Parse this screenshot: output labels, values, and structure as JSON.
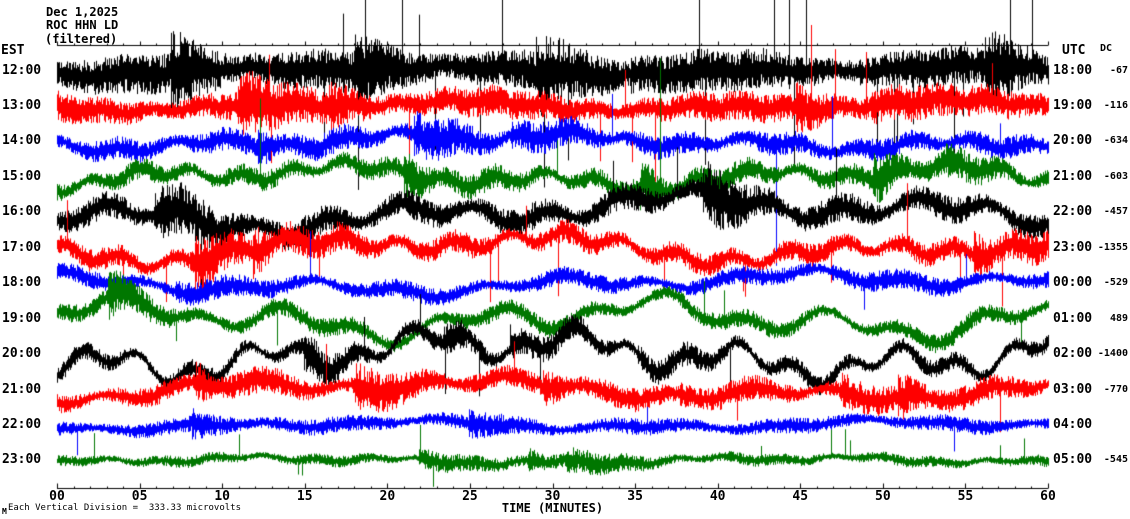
{
  "header": {
    "date": "Dec 1,2025",
    "station": "ROC HHN LD",
    "filter": "(filtered)"
  },
  "axes": {
    "left_label": "EST",
    "right_label": "UTC",
    "dc_label": "DC",
    "x_title": "TIME (MINUTES)",
    "x_ticks": [
      "00",
      "05",
      "10",
      "15",
      "20",
      "25",
      "30",
      "35",
      "40",
      "45",
      "50",
      "55",
      "60"
    ]
  },
  "footer": {
    "scale_note": "Each Vertical Division =  333.33 microvolts",
    "corner_mark": "M"
  },
  "colors": {
    "trace_black": "#000000",
    "trace_red": "#ff0000",
    "trace_blue": "#0000ff",
    "trace_green": "#007700",
    "axis": "#000000",
    "background": "#ffffff"
  },
  "chart_data": {
    "type": "line",
    "subtype": "helicorder-seismogram",
    "title": "ROC HHN LD — Dec 1,2025",
    "xlabel": "TIME (MINUTES)",
    "x_range_minutes": [
      0,
      60
    ],
    "x_tick_step_minutes": 5,
    "minutes_per_row": 60,
    "left_axis_timezone": "EST",
    "right_axis_timezone": "UTC",
    "microvolts_per_division": 333.33,
    "scale_note": "Each Vertical Division =  333.33 microvolts",
    "rows": [
      {
        "est": "12:00",
        "utc": "18:00",
        "dc": "-67",
        "color": "#000000",
        "amp": 17,
        "wander": 6,
        "spikes": 0.02
      },
      {
        "est": "13:00",
        "utc": "19:00",
        "dc": "-116",
        "color": "#ff0000",
        "amp": 13,
        "wander": 7,
        "spikes": 0.01
      },
      {
        "est": "14:00",
        "utc": "20:00",
        "dc": "-634",
        "color": "#0000ff",
        "amp": 10,
        "wander": 11,
        "spikes": 0.006
      },
      {
        "est": "15:00",
        "utc": "21:00",
        "dc": "-603",
        "color": "#007700",
        "amp": 9,
        "wander": 15,
        "spikes": 0.006
      },
      {
        "est": "16:00",
        "utc": "22:00",
        "dc": "-457",
        "color": "#000000",
        "amp": 12,
        "wander": 22,
        "spikes": 0.01
      },
      {
        "est": "17:00",
        "utc": "23:00",
        "dc": "-1355",
        "color": "#ff0000",
        "amp": 10,
        "wander": 18,
        "spikes": 0.018
      },
      {
        "est": "18:00",
        "utc": "00:00",
        "dc": "-529",
        "color": "#0000ff",
        "amp": 8,
        "wander": 13,
        "spikes": 0.006
      },
      {
        "est": "19:00",
        "utc": "01:00",
        "dc": "489",
        "color": "#007700",
        "amp": 8,
        "wander": 24,
        "spikes": 0.006
      },
      {
        "est": "20:00",
        "utc": "02:00",
        "dc": "-1400",
        "color": "#000000",
        "amp": 8,
        "wander": 28,
        "spikes": 0.008
      },
      {
        "est": "21:00",
        "utc": "03:00",
        "dc": "-770",
        "color": "#ff0000",
        "amp": 9,
        "wander": 14,
        "spikes": 0.006
      },
      {
        "est": "22:00",
        "utc": "04:00",
        "dc": "",
        "color": "#0000ff",
        "amp": 7,
        "wander": 6,
        "spikes": 0.004
      },
      {
        "est": "23:00",
        "utc": "05:00",
        "dc": "-545",
        "color": "#007700",
        "amp": 5,
        "wander": 5,
        "spikes": 0.012
      }
    ]
  }
}
